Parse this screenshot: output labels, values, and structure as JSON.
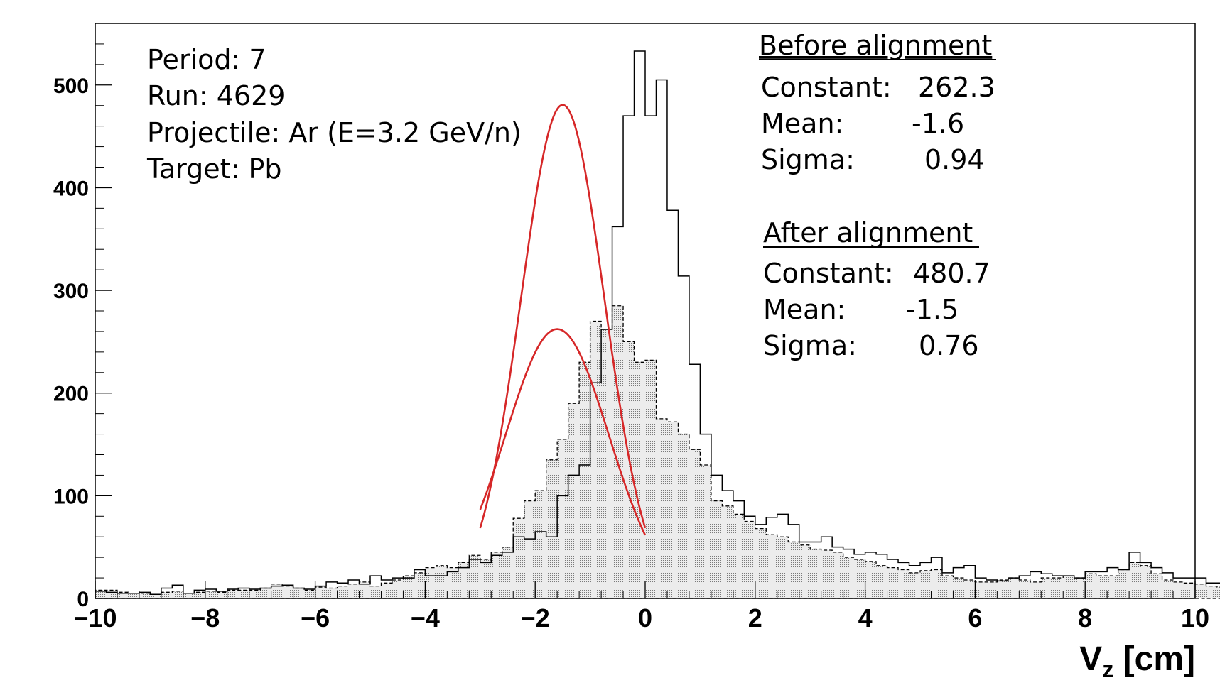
{
  "chart_data": {
    "type": "histogram",
    "xlabel": "V",
    "xlabel_sub": "z",
    "xlabel_unit": " [cm]",
    "xlim": [
      -10,
      10
    ],
    "ylim": [
      0,
      560
    ],
    "x_ticks": [
      -10,
      -8,
      -6,
      -4,
      -2,
      0,
      2,
      4,
      6,
      8,
      10
    ],
    "x_tick_labels": [
      "−10",
      "−8",
      "−6",
      "−4",
      "−2",
      "0",
      "2",
      "4",
      "6",
      "8",
      "10"
    ],
    "y_ticks": [
      0,
      100,
      200,
      300,
      400,
      500
    ],
    "y_tick_labels": [
      "0",
      "100",
      "200",
      "300",
      "400",
      "500"
    ],
    "grid": false,
    "bin_width": 0.2,
    "bin_edges_start": -10,
    "info_lines": [
      "Period: 7",
      "Run: 4629",
      "Projectile: Ar (E=3.2 GeV/n)",
      "Target: Pb"
    ],
    "fit_boxes": [
      {
        "title": "Before alignment",
        "rows": [
          {
            "label": "Constant:",
            "value": "262.3"
          },
          {
            "label": "Mean:",
            "value": "-1.6"
          },
          {
            "label": "Sigma:",
            "value": "0.94"
          }
        ]
      },
      {
        "title": "After alignment",
        "rows": [
          {
            "label": "Constant:",
            "value": "480.7"
          },
          {
            "label": "Mean:",
            "value": "-1.5"
          },
          {
            "label": "Sigma:",
            "value": "0.76"
          }
        ]
      }
    ],
    "series": [
      {
        "style": "solid",
        "values": [
          7,
          6,
          5,
          5,
          6,
          4,
          10,
          13,
          5,
          8,
          9,
          7,
          9,
          10,
          9,
          10,
          12,
          13,
          10,
          9,
          12,
          16,
          15,
          18,
          14,
          22,
          18,
          20,
          20,
          28,
          22,
          22,
          26,
          30,
          38,
          35,
          42,
          45,
          60,
          58,
          65,
          60,
          100,
          120,
          130,
          210,
          262,
          362,
          470,
          533,
          470,
          505,
          378,
          314,
          228,
          160,
          120,
          105,
          95,
          80,
          72,
          79,
          82,
          72,
          55,
          55,
          60,
          50,
          48,
          43,
          45,
          43,
          38,
          35,
          32,
          35,
          40,
          25,
          30,
          32,
          20,
          18,
          17,
          20,
          22,
          26,
          24,
          22,
          22,
          20,
          26,
          26,
          30,
          28,
          45,
          35,
          30,
          25,
          20,
          20,
          20,
          15,
          15,
          14,
          13,
          12,
          10,
          15,
          12,
          10,
          12,
          8,
          12,
          10,
          12,
          8,
          10,
          8,
          10,
          8,
          6,
          6,
          6,
          5,
          6,
          8,
          10,
          8,
          10,
          12,
          10,
          12,
          14,
          12,
          10,
          8,
          10,
          8,
          10,
          8,
          10,
          8,
          8,
          8,
          10,
          8,
          12,
          10,
          10,
          8,
          10,
          12,
          14,
          12,
          10,
          8,
          10,
          8,
          10,
          8,
          6,
          6,
          5,
          6,
          5,
          5,
          4,
          4,
          4,
          5,
          4,
          5,
          4,
          4,
          4,
          4,
          5,
          4,
          4,
          4,
          4,
          4,
          4,
          4,
          4,
          4,
          4,
          4,
          4,
          4,
          4,
          4,
          4,
          4,
          4,
          4,
          4,
          4,
          4,
          4
        ]
      },
      {
        "style": "dashed-filled",
        "values": [
          8,
          8,
          6,
          5,
          5,
          4,
          6,
          7,
          5,
          6,
          7,
          6,
          8,
          8,
          8,
          10,
          14,
          12,
          10,
          8,
          11,
          10,
          12,
          14,
          16,
          12,
          15,
          18,
          22,
          25,
          30,
          32,
          30,
          35,
          42,
          38,
          45,
          50,
          78,
          95,
          105,
          135,
          155,
          190,
          230,
          270,
          262,
          285,
          250,
          230,
          232,
          175,
          172,
          160,
          145,
          130,
          95,
          90,
          82,
          75,
          68,
          62,
          60,
          55,
          52,
          48,
          47,
          45,
          40,
          38,
          36,
          32,
          30,
          28,
          25,
          27,
          28,
          22,
          20,
          18,
          16,
          16,
          18,
          20,
          18,
          16,
          20,
          20,
          22,
          20,
          24,
          22,
          22,
          28,
          35,
          32,
          24,
          18,
          16,
          15,
          14,
          12,
          11,
          10,
          10,
          9,
          8,
          8,
          7,
          7,
          6,
          6,
          6,
          5,
          5,
          5,
          5,
          4,
          4,
          4,
          4,
          4,
          3,
          3,
          3,
          3,
          3,
          3,
          3,
          3,
          3,
          3,
          3,
          3,
          3,
          3,
          3,
          3,
          3,
          3,
          3,
          3,
          3,
          3,
          3,
          3,
          3,
          3,
          3,
          3,
          3,
          3,
          3,
          3,
          3,
          3,
          3,
          3,
          3,
          3,
          3,
          3,
          3,
          3,
          3,
          3,
          3,
          3,
          3,
          3,
          3,
          3,
          3,
          3,
          3,
          3,
          3,
          3,
          3,
          3,
          3,
          3,
          3,
          3,
          3,
          3,
          3,
          3,
          3,
          3,
          3,
          3,
          3,
          3,
          3,
          3,
          3,
          3,
          3,
          3
        ]
      }
    ],
    "fits": [
      {
        "constant": 480.7,
        "mean": -1.5,
        "sigma": 0.76,
        "x_range": [
          -3.0,
          0.0
        ],
        "color": "#d62728"
      },
      {
        "constant": 262.3,
        "mean": -1.6,
        "sigma": 0.94,
        "x_range": [
          -3.0,
          0.0
        ],
        "color": "#d62728"
      }
    ]
  }
}
